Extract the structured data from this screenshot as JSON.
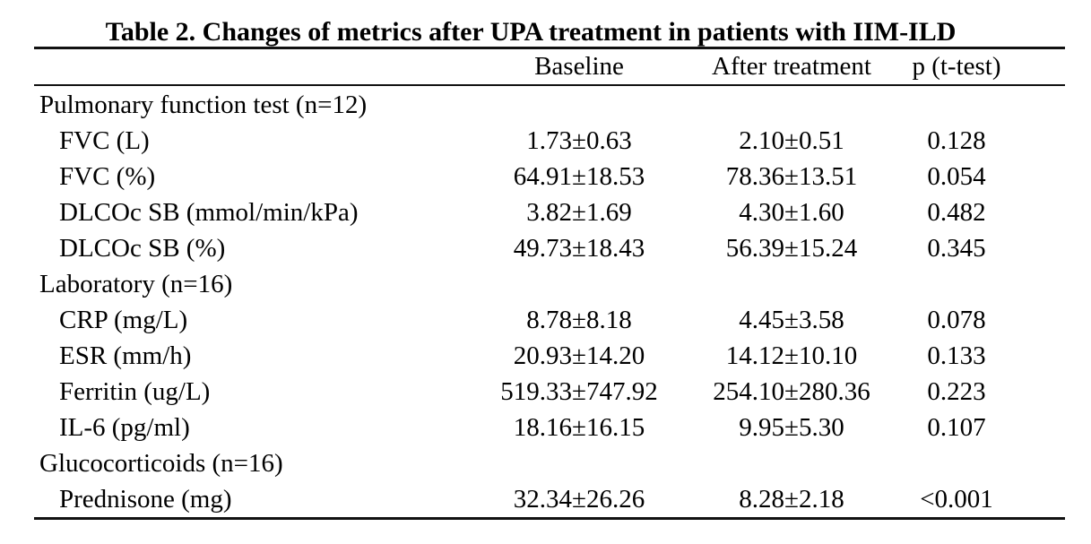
{
  "page": {
    "background_color": "#ffffff",
    "text_color": "#000000"
  },
  "table": {
    "title": "Table 2. Changes of metrics after UPA treatment in patients with IIM-ILD",
    "headers": {
      "baseline": "Baseline",
      "after": "After treatment",
      "p": "p (t-test)"
    },
    "rows": [
      {
        "type": "section",
        "label": "Pulmonary function test (n=12)"
      },
      {
        "type": "data",
        "label": "FVC (L)",
        "baseline": "1.73±0.63",
        "after": "2.10±0.51",
        "p": "0.128"
      },
      {
        "type": "data",
        "label": "FVC (%)",
        "baseline": "64.91±18.53",
        "after": "78.36±13.51",
        "p": "0.054"
      },
      {
        "type": "data",
        "label": "DLCOc SB (mmol/min/kPa)",
        "baseline": "3.82±1.69",
        "after": "4.30±1.60",
        "p": "0.482"
      },
      {
        "type": "data",
        "label": "DLCOc SB (%)",
        "baseline": "49.73±18.43",
        "after": "56.39±15.24",
        "p": "0.345"
      },
      {
        "type": "section",
        "label": "Laboratory (n=16)"
      },
      {
        "type": "data",
        "label": "CRP (mg/L)",
        "baseline": "8.78±8.18",
        "after": "4.45±3.58",
        "p": "0.078"
      },
      {
        "type": "data",
        "label": "ESR (mm/h)",
        "baseline": "20.93±14.20",
        "after": "14.12±10.10",
        "p": "0.133"
      },
      {
        "type": "data",
        "label": "Ferritin (ug/L)",
        "baseline": "519.33±747.92",
        "after": "254.10±280.36",
        "p": "0.223"
      },
      {
        "type": "data",
        "label": "IL-6 (pg/ml)",
        "baseline": "18.16±16.15",
        "after": "9.95±5.30",
        "p": "0.107"
      },
      {
        "type": "section",
        "label": "Glucocorticoids (n=16)"
      },
      {
        "type": "data",
        "label": "Prednisone (mg)",
        "baseline": "32.34±26.26",
        "after": "8.28±2.18",
        "p": "<0.001"
      }
    ]
  }
}
